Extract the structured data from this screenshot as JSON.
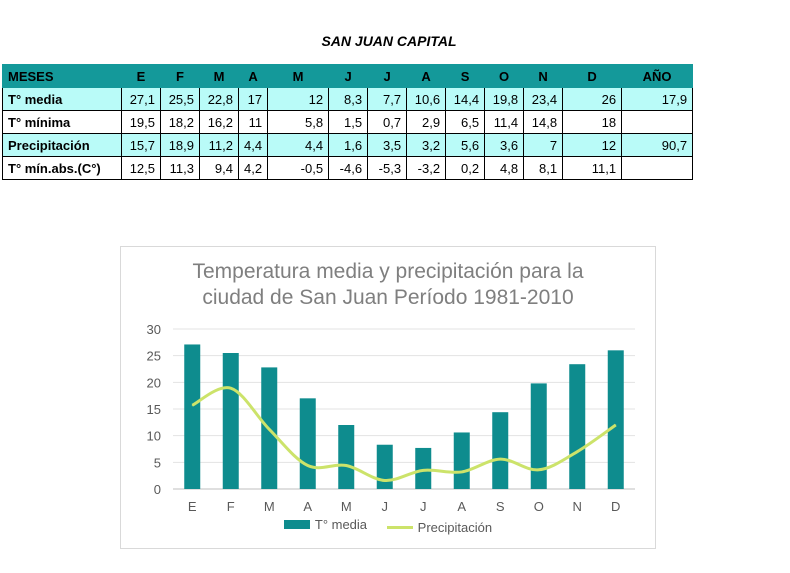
{
  "table": {
    "title": "SAN JUAN CAPITAL",
    "header": [
      "MESES",
      "E",
      "F",
      "M",
      "A",
      "M",
      "J",
      "J",
      "A",
      "S",
      "O",
      "N",
      "D",
      "AÑO"
    ],
    "rows": [
      {
        "label": "T° media",
        "values": [
          "27,1",
          "25,5",
          "22,8",
          "17",
          "12",
          "8,3",
          "7,7",
          "10,6",
          "14,4",
          "19,8",
          "23,4",
          "26",
          "17,9"
        ]
      },
      {
        "label": "T° mínima",
        "values": [
          "19,5",
          "18,2",
          "16,2",
          "11",
          "5,8",
          "1,5",
          "0,7",
          "2,9",
          "6,5",
          "11,4",
          "14,8",
          "18",
          ""
        ]
      },
      {
        "label": "Precipitación",
        "values": [
          "15,7",
          "18,9",
          "11,2",
          "4,4",
          "4,4",
          "1,6",
          "3,5",
          "3,2",
          "5,6",
          "3,6",
          "7",
          "12",
          "90,7"
        ]
      },
      {
        "label": "T° mín.abs.(C°)",
        "values": [
          "12,5",
          "11,3",
          "9,4",
          "4,2",
          "-0,5",
          "-4,6",
          "-5,3",
          "-3,2",
          "0,2",
          "4,8",
          "8,1",
          "11,1",
          ""
        ]
      }
    ]
  },
  "chart_data": {
    "type": "bar",
    "title_lines": [
      "Temperatura media y precipitación para la",
      "ciudad de San Juan Período  1981-2010"
    ],
    "categories": [
      "E",
      "F",
      "M",
      "A",
      "M",
      "J",
      "J",
      "A",
      "S",
      "O",
      "N",
      "D"
    ],
    "series": [
      {
        "name": "T° media",
        "type": "bar",
        "color": "#0e8c8e",
        "values": [
          27.1,
          25.5,
          22.8,
          17,
          12,
          8.3,
          7.7,
          10.6,
          14.4,
          19.8,
          23.4,
          26
        ]
      },
      {
        "name": "Precipitación",
        "type": "line",
        "color": "#cce36a",
        "values": [
          15.7,
          18.9,
          11.2,
          4.4,
          4.4,
          1.6,
          3.5,
          3.2,
          5.6,
          3.6,
          7,
          12
        ]
      }
    ],
    "ylim": [
      0,
      30
    ],
    "yticks": [
      "0",
      "5",
      "10",
      "15",
      "20",
      "25",
      "30"
    ],
    "xlabel": "",
    "ylabel": "",
    "grid": true,
    "legend": "bottom"
  }
}
